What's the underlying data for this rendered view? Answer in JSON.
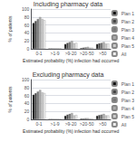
{
  "chart_data": [
    {
      "type": "bar",
      "title": "Including pharmacy data",
      "xlabel": "Estimated probability (%) infection had occurred",
      "ylabel": "% of patients",
      "categories": [
        "0-1",
        ">1-9",
        ">9-20",
        ">20-50",
        ">50"
      ],
      "series": [
        {
          "name": "Plan 1",
          "color": "#111111",
          "values": [
            65,
            1,
            12,
            2,
            12
          ]
        },
        {
          "name": "Plan 2",
          "color": "#444444",
          "values": [
            70,
            1,
            15,
            3,
            14
          ]
        },
        {
          "name": "Plan 3",
          "color": "#777777",
          "values": [
            75,
            1,
            17,
            4,
            15
          ]
        },
        {
          "name": "Plan 4",
          "color": "#aaaaaa",
          "values": [
            80,
            1,
            20,
            5,
            17
          ]
        },
        {
          "name": "Plan 5",
          "color": "#cccccc",
          "values": [
            75,
            1,
            14,
            3,
            13
          ]
        },
        {
          "name": "All",
          "color": "#eeeeee",
          "values": [
            72,
            1,
            15,
            3,
            13
          ]
        }
      ],
      "ylim": [
        0,
        100
      ],
      "yticks": [
        0,
        20,
        40,
        60,
        80,
        100
      ],
      "grid": true,
      "legend": "right"
    },
    {
      "type": "bar",
      "title": "Excluding pharmacy data",
      "xlabel": "Estimated probability (%) infection had occurred",
      "ylabel": "% of patients",
      "categories": [
        "0-1",
        ">1-9",
        ">9-20",
        ">20-50",
        ">50"
      ],
      "series": [
        {
          "name": "Plan 1",
          "color": "#111111",
          "values": [
            62,
            1,
            9,
            2,
            9
          ]
        },
        {
          "name": "Plan 2",
          "color": "#444444",
          "values": [
            66,
            1,
            12,
            2,
            11
          ]
        },
        {
          "name": "Plan 3",
          "color": "#777777",
          "values": [
            70,
            1,
            14,
            3,
            12
          ]
        },
        {
          "name": "Plan 4",
          "color": "#aaaaaa",
          "values": [
            74,
            1,
            16,
            3,
            14
          ]
        },
        {
          "name": "Plan 5",
          "color": "#cccccc",
          "values": [
            68,
            1,
            10,
            2,
            10
          ]
        },
        {
          "name": "All",
          "color": "#eeeeee",
          "values": [
            66,
            1,
            11,
            2,
            10
          ]
        }
      ],
      "ylim": [
        0,
        100
      ],
      "yticks": [
        0,
        20,
        40,
        60,
        80,
        100
      ],
      "grid": true,
      "legend": "right"
    }
  ]
}
